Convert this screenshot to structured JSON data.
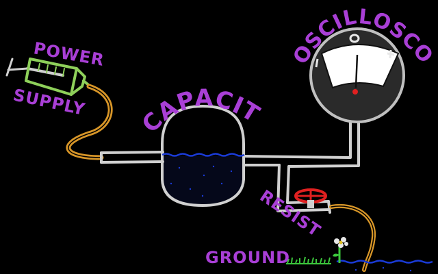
{
  "labels": {
    "power_supply_line1": "POWER",
    "power_supply_line2": "SUPPLY",
    "capacitor": "CAPACITOR",
    "oscilloscope": "OSCILLOSCOPE",
    "resistor": "RESISTOR",
    "ground": "GROUND"
  },
  "colors": {
    "background": "#000000",
    "pipe": "#d0d0d0",
    "hose": "#d89628",
    "syringe": "#8ed05a",
    "label": "#a93fd6",
    "water_line": "#1a3bd8",
    "valve": "#e02020",
    "gauge_needle": "#e02020",
    "grass": "#3cc83c"
  }
}
